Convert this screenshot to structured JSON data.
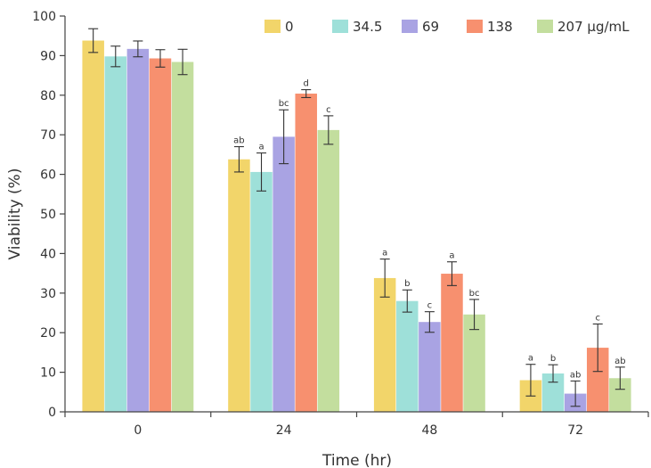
{
  "chart_data": {
    "type": "bar",
    "title": "",
    "xlabel": "Time (hr)",
    "ylabel": "Viability (%)",
    "ylim": [
      0,
      100
    ],
    "yticks": [
      0,
      10,
      20,
      30,
      40,
      50,
      60,
      70,
      80,
      90,
      100
    ],
    "grid": false,
    "legend_position": "top-right",
    "categories": [
      "0",
      "24",
      "48",
      "72"
    ],
    "series": [
      {
        "name": "0",
        "color": "#F2D56A",
        "values": [
          93.8,
          63.8,
          33.8,
          8.0
        ],
        "errors": [
          3.0,
          3.2,
          4.8,
          4.0
        ],
        "labels": [
          "",
          "ab",
          "a",
          "a"
        ]
      },
      {
        "name": "34.5",
        "color": "#9EE0D9",
        "values": [
          89.8,
          60.6,
          28.0,
          9.7
        ],
        "errors": [
          2.6,
          4.8,
          2.8,
          2.2
        ],
        "labels": [
          "",
          "a",
          "b",
          "b"
        ]
      },
      {
        "name": "69",
        "color": "#A9A3E3",
        "values": [
          91.7,
          69.5,
          22.7,
          4.6
        ],
        "errors": [
          2.0,
          6.8,
          2.6,
          3.2
        ],
        "labels": [
          "",
          "bc",
          "c",
          "ab"
        ]
      },
      {
        "name": "138",
        "color": "#F7906F",
        "values": [
          89.3,
          80.4,
          34.9,
          16.2
        ],
        "errors": [
          2.2,
          1.0,
          3.0,
          6.0
        ],
        "labels": [
          "",
          "d",
          "a",
          "c"
        ]
      },
      {
        "name": "207 μg/mL",
        "color": "#C3DE9E",
        "values": [
          88.4,
          71.2,
          24.6,
          8.5
        ],
        "errors": [
          3.2,
          3.6,
          3.8,
          2.8
        ],
        "labels": [
          "",
          "c",
          "bc",
          "ab"
        ]
      }
    ]
  }
}
